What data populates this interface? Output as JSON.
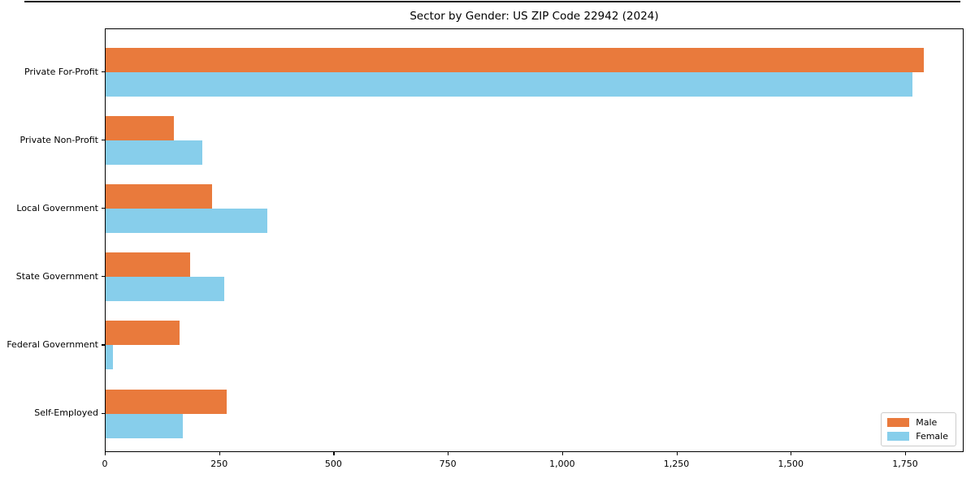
{
  "figure": {
    "background": "#ffffff",
    "frame_color": "#000000"
  },
  "chart_data": {
    "type": "bar",
    "orientation": "horizontal",
    "title": "Sector by Gender: US ZIP Code 22942 (2024)",
    "categories": [
      "Private For-Profit",
      "Private Non-Profit",
      "Local Government",
      "State Government",
      "Federal Government",
      "Self-Employed"
    ],
    "series": [
      {
        "name": "Male",
        "color": "#E97A3C",
        "values": [
          1790,
          149,
          233,
          184,
          162,
          264
        ]
      },
      {
        "name": "Female",
        "color": "#87CEEB",
        "values": [
          1765,
          212,
          353,
          260,
          16,
          168
        ]
      }
    ],
    "xlabel": "",
    "ylabel": "",
    "xlim": [
      0,
      1878
    ],
    "x_tick_values": [
      0,
      250,
      500,
      750,
      1000,
      1250,
      1500,
      1750
    ],
    "x_tick_labels": [
      "0",
      "250",
      "500",
      "750",
      "1,000",
      "1,250",
      "1,500",
      "1,750"
    ],
    "grid": false,
    "legend": {
      "position": "lower right",
      "entries": [
        "Male",
        "Female"
      ]
    }
  }
}
